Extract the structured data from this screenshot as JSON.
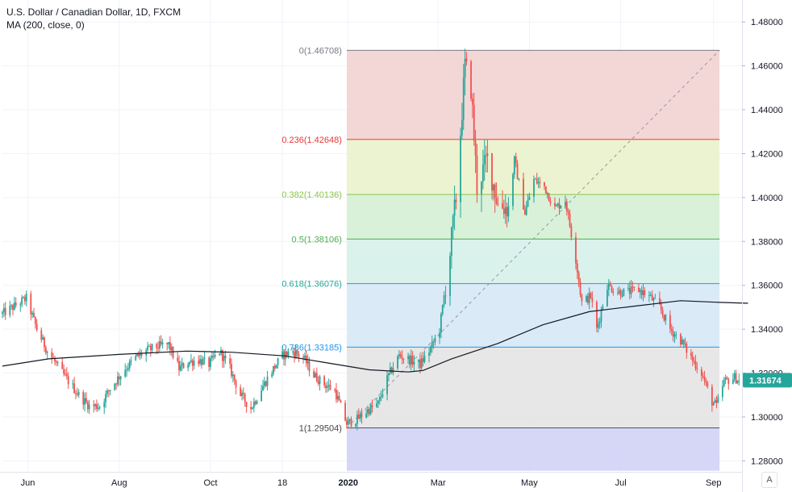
{
  "header": {
    "symbol_title": "U.S. Dollar / Canadian Dollar, 1D, FXCM",
    "indicator": "MA (200, close, 0)"
  },
  "controls": {
    "auto_scale_label": "A"
  },
  "colors": {
    "up": "#26a69a",
    "down": "#ef5350",
    "ma": "#131722",
    "price_badge": "#26a69a",
    "grid": "#f0f3fa"
  },
  "chart_data": {
    "type": "candlestick",
    "symbol": "USD/CAD",
    "timeframe": "1D",
    "y_axis": {
      "ylim": [
        1.275,
        1.49
      ],
      "ticks": [
        "1.48000",
        "1.46000",
        "1.44000",
        "1.42000",
        "1.40000",
        "1.38000",
        "1.36000",
        "1.34000",
        "1.32000",
        "1.30000",
        "1.28000"
      ],
      "tick_values": [
        1.48,
        1.46,
        1.44,
        1.42,
        1.4,
        1.38,
        1.36,
        1.34,
        1.32,
        1.3,
        1.28
      ]
    },
    "x_axis": {
      "range": [
        "2019-05-15",
        "2020-09-20"
      ],
      "ticks": [
        {
          "label": "Jun",
          "date": "2019-06-01",
          "bold": false
        },
        {
          "label": "Aug",
          "date": "2019-08-01",
          "bold": false
        },
        {
          "label": "Oct",
          "date": "2019-10-01",
          "bold": false
        },
        {
          "label": "18",
          "date": "2019-11-18",
          "bold": false
        },
        {
          "label": "2020",
          "date": "2020-01-01",
          "bold": true
        },
        {
          "label": "Mar",
          "date": "2020-03-01",
          "bold": false
        },
        {
          "label": "May",
          "date": "2020-05-01",
          "bold": false
        },
        {
          "label": "Jul",
          "date": "2020-07-01",
          "bold": false
        },
        {
          "label": "Sep",
          "date": "2020-09-01",
          "bold": false
        }
      ]
    },
    "last_price": {
      "label": "1.31674",
      "value": 1.31674
    },
    "fibonacci": {
      "start": {
        "date": "2019-12-31",
        "price": 1.29504
      },
      "end": {
        "date": "2020-03-19",
        "price": 1.46708
      },
      "right_edge_date": "2020-09-05",
      "levels": [
        {
          "label": "0(1.46708)",
          "price": 1.46708,
          "line": "#787b86",
          "fill": "#f2d3d3"
        },
        {
          "label": "0.236(1.42648)",
          "price": 1.42648,
          "line": "#e53935",
          "fill": "#eaf2cc"
        },
        {
          "label": "0.382(1.40136)",
          "price": 1.40136,
          "line": "#8bc34a",
          "fill": "#d5f0d5"
        },
        {
          "label": "0.5(1.38106)",
          "price": 1.38106,
          "line": "#4caf50",
          "fill": "#d6f1ea"
        },
        {
          "label": "0.618(1.36076)",
          "price": 1.36076,
          "line": "#26a69a",
          "fill": "#d6e8f6"
        },
        {
          "label": "0.786(1.33185)",
          "price": 1.33185,
          "line": "#2196f3",
          "fill": "#e4e4e4"
        },
        {
          "label": "1(1.29504)",
          "price": 1.29504,
          "line": "#555555",
          "fill": "#d1d1f6"
        }
      ],
      "below_bottom_price": 1.2755
    },
    "price_path": [
      [
        "2019-05-15",
        1.347
      ],
      [
        "2019-05-31",
        1.354
      ],
      [
        "2019-06-07",
        1.34
      ],
      [
        "2019-06-14",
        1.33
      ],
      [
        "2019-06-24",
        1.32
      ],
      [
        "2019-07-05",
        1.31
      ],
      [
        "2019-07-12",
        1.305
      ],
      [
        "2019-07-19",
        1.305
      ],
      [
        "2019-07-26",
        1.313
      ],
      [
        "2019-08-05",
        1.322
      ],
      [
        "2019-08-12",
        1.327
      ],
      [
        "2019-08-19",
        1.33
      ],
      [
        "2019-08-26",
        1.332
      ],
      [
        "2019-09-03",
        1.333
      ],
      [
        "2019-09-10",
        1.322
      ],
      [
        "2019-09-16",
        1.325
      ],
      [
        "2019-09-23",
        1.326
      ],
      [
        "2019-09-30",
        1.324
      ],
      [
        "2019-10-07",
        1.33
      ],
      [
        "2019-10-14",
        1.322
      ],
      [
        "2019-10-21",
        1.31
      ],
      [
        "2019-10-28",
        1.304
      ],
      [
        "2019-11-04",
        1.313
      ],
      [
        "2019-11-12",
        1.322
      ],
      [
        "2019-11-18",
        1.328
      ],
      [
        "2019-11-25",
        1.33
      ],
      [
        "2019-12-02",
        1.327
      ],
      [
        "2019-12-09",
        1.319
      ],
      [
        "2019-12-16",
        1.315
      ],
      [
        "2019-12-23",
        1.312
      ],
      [
        "2019-12-31",
        1.297
      ],
      [
        "2020-01-07",
        1.299
      ],
      [
        "2020-01-14",
        1.303
      ],
      [
        "2020-01-21",
        1.306
      ],
      [
        "2020-01-28",
        1.319
      ],
      [
        "2020-02-04",
        1.328
      ],
      [
        "2020-02-11",
        1.326
      ],
      [
        "2020-02-18",
        1.324
      ],
      [
        "2020-02-25",
        1.331
      ],
      [
        "2020-03-02",
        1.34
      ],
      [
        "2020-03-09",
        1.375
      ],
      [
        "2020-03-13",
        1.4
      ],
      [
        "2020-03-17",
        1.44
      ],
      [
        "2020-03-19",
        1.46
      ],
      [
        "2020-03-23",
        1.45
      ],
      [
        "2020-03-27",
        1.405
      ],
      [
        "2020-04-03",
        1.418
      ],
      [
        "2020-04-10",
        1.397
      ],
      [
        "2020-04-17",
        1.395
      ],
      [
        "2020-04-21",
        1.417
      ],
      [
        "2020-04-28",
        1.393
      ],
      [
        "2020-05-04",
        1.408
      ],
      [
        "2020-05-11",
        1.405
      ],
      [
        "2020-05-18",
        1.395
      ],
      [
        "2020-05-25",
        1.399
      ],
      [
        "2020-06-01",
        1.372
      ],
      [
        "2020-06-05",
        1.352
      ],
      [
        "2020-06-11",
        1.355
      ],
      [
        "2020-06-15",
        1.34
      ],
      [
        "2020-06-22",
        1.36
      ],
      [
        "2020-06-29",
        1.357
      ],
      [
        "2020-07-06",
        1.357
      ],
      [
        "2020-07-13",
        1.358
      ],
      [
        "2020-07-20",
        1.355
      ],
      [
        "2020-07-27",
        1.35
      ],
      [
        "2020-08-03",
        1.34
      ],
      [
        "2020-08-10",
        1.335
      ],
      [
        "2020-08-17",
        1.327
      ],
      [
        "2020-08-24",
        1.32
      ],
      [
        "2020-08-31",
        1.307
      ],
      [
        "2020-09-03",
        1.305
      ],
      [
        "2020-09-08",
        1.316
      ],
      [
        "2020-09-15",
        1.318
      ],
      [
        "2020-09-18",
        1.31674
      ]
    ],
    "ma_200": {
      "label": "MA (200, close, 0)",
      "points": [
        [
          "2019-05-15",
          1.3232
        ],
        [
          "2019-06-15",
          1.3265
        ],
        [
          "2019-08-01",
          1.3285
        ],
        [
          "2019-09-15",
          1.33
        ],
        [
          "2019-10-15",
          1.3295
        ],
        [
          "2019-11-20",
          1.3278
        ],
        [
          "2019-12-15",
          1.325
        ],
        [
          "2020-01-15",
          1.3215
        ],
        [
          "2020-02-10",
          1.3205
        ],
        [
          "2020-02-20",
          1.3212
        ],
        [
          "2020-03-10",
          1.3265
        ],
        [
          "2020-04-10",
          1.3335
        ],
        [
          "2020-05-10",
          1.342
        ],
        [
          "2020-06-10",
          1.348
        ],
        [
          "2020-07-10",
          1.3505
        ],
        [
          "2020-08-10",
          1.353
        ],
        [
          "2020-09-05",
          1.3522
        ],
        [
          "2020-09-24",
          1.3518
        ]
      ]
    }
  }
}
